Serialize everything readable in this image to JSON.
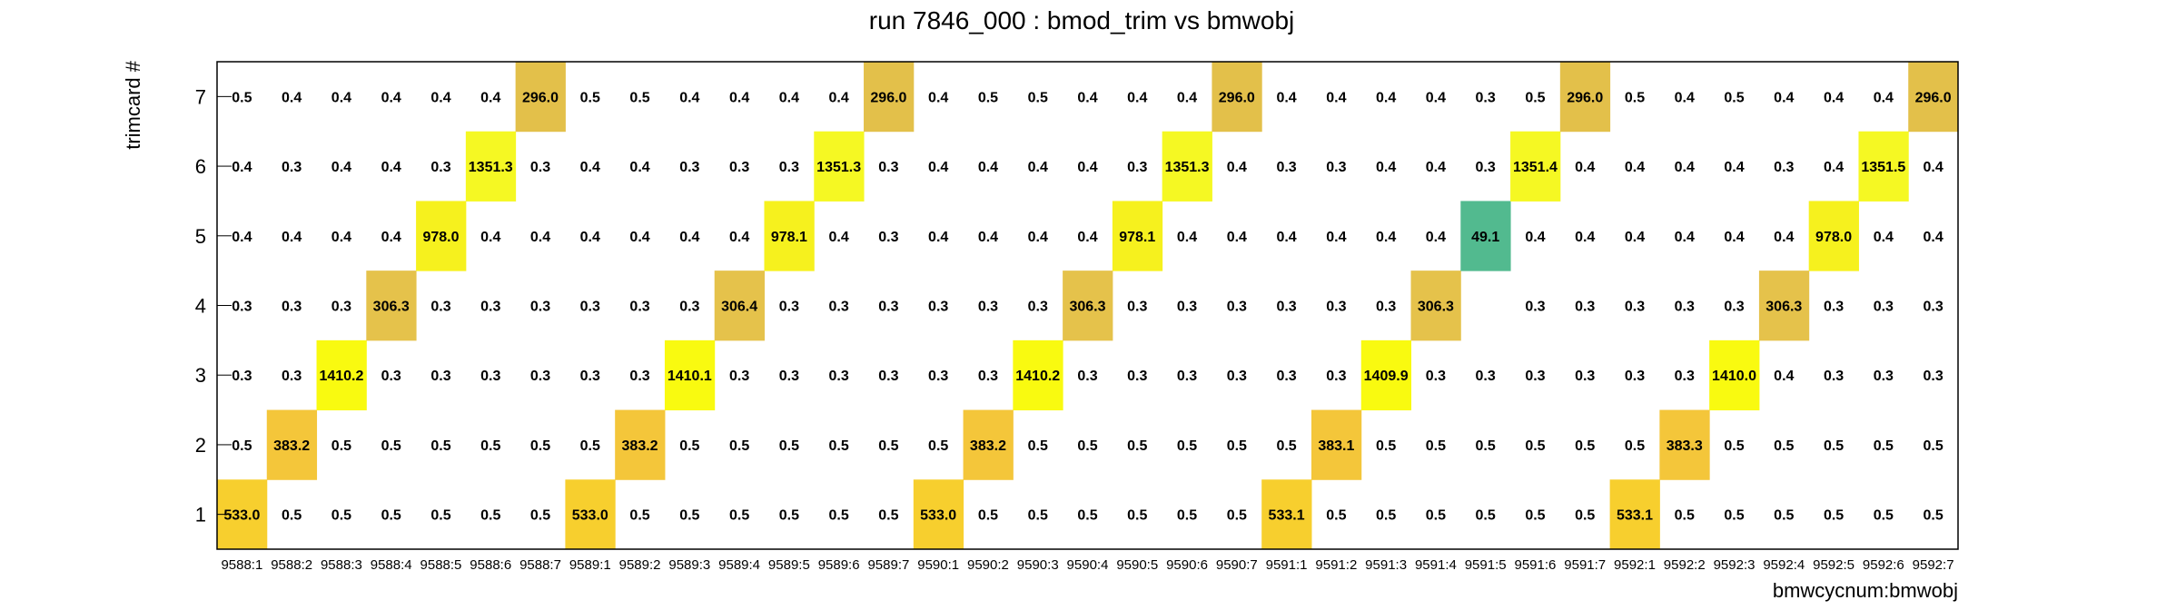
{
  "chart_data": {
    "type": "heatmap",
    "title": "run 7846_000 : bmod_trim vs bmwobj",
    "xlabel": "bmwcycnum:bmwobj",
    "ylabel": "trimcard #",
    "x_categories": [
      "9588:1",
      "9588:2",
      "9588:3",
      "9588:4",
      "9588:5",
      "9588:6",
      "9588:7",
      "9589:1",
      "9589:2",
      "9589:3",
      "9589:4",
      "9589:5",
      "9589:6",
      "9589:7",
      "9590:1",
      "9590:2",
      "9590:3",
      "9590:4",
      "9590:5",
      "9590:6",
      "9590:7",
      "9591:1",
      "9591:2",
      "9591:3",
      "9591:4",
      "9591:5",
      "9591:6",
      "9591:7",
      "9592:1",
      "9592:2",
      "9592:3",
      "9592:4",
      "9592:5",
      "9592:6",
      "9592:7"
    ],
    "y_categories": [
      "1",
      "2",
      "3",
      "4",
      "5",
      "6",
      "7"
    ],
    "rows": [
      [
        "533.0",
        "0.5",
        "0.5",
        "0.5",
        "0.5",
        "0.5",
        "0.5",
        "533.0",
        "0.5",
        "0.5",
        "0.5",
        "0.5",
        "0.5",
        "0.5",
        "533.0",
        "0.5",
        "0.5",
        "0.5",
        "0.5",
        "0.5",
        "0.5",
        "533.1",
        "0.5",
        "0.5",
        "0.5",
        "0.5",
        "0.5",
        "0.5",
        "533.1",
        "0.5",
        "0.5",
        "0.5",
        "0.5",
        "0.5",
        "0.5"
      ],
      [
        "0.5",
        "383.2",
        "0.5",
        "0.5",
        "0.5",
        "0.5",
        "0.5",
        "0.5",
        "383.2",
        "0.5",
        "0.5",
        "0.5",
        "0.5",
        "0.5",
        "0.5",
        "383.2",
        "0.5",
        "0.5",
        "0.5",
        "0.5",
        "0.5",
        "0.5",
        "383.1",
        "0.5",
        "0.5",
        "0.5",
        "0.5",
        "0.5",
        "0.5",
        "383.3",
        "0.5",
        "0.5",
        "0.5",
        "0.5",
        "0.5"
      ],
      [
        "0.3",
        "0.3",
        "1410.2",
        "0.3",
        "0.3",
        "0.3",
        "0.3",
        "0.3",
        "0.3",
        "1410.1",
        "0.3",
        "0.3",
        "0.3",
        "0.3",
        "0.3",
        "0.3",
        "1410.2",
        "0.3",
        "0.3",
        "0.3",
        "0.3",
        "0.3",
        "0.3",
        "1409.9",
        "0.3",
        "0.3",
        "0.3",
        "0.3",
        "0.3",
        "0.3",
        "1410.0",
        "0.4",
        "0.3",
        "0.3",
        "0.3"
      ],
      [
        "0.3",
        "0.3",
        "0.3",
        "306.3",
        "0.3",
        "0.3",
        "0.3",
        "0.3",
        "0.3",
        "0.3",
        "306.4",
        "0.3",
        "0.3",
        "0.3",
        "0.3",
        "0.3",
        "0.3",
        "306.3",
        "0.3",
        "0.3",
        "0.3",
        "0.3",
        "0.3",
        "0.3",
        "306.3",
        "",
        "0.3",
        "0.3",
        "0.3",
        "0.3",
        "0.3",
        "306.3",
        "0.3",
        "0.3",
        "0.3"
      ],
      [
        "0.4",
        "0.4",
        "0.4",
        "0.4",
        "978.0",
        "0.4",
        "0.4",
        "0.4",
        "0.4",
        "0.4",
        "0.4",
        "978.1",
        "0.4",
        "0.3",
        "0.4",
        "0.4",
        "0.4",
        "0.4",
        "978.1",
        "0.4",
        "0.4",
        "0.4",
        "0.4",
        "0.4",
        "0.4",
        "49.1",
        "0.4",
        "0.4",
        "0.4",
        "0.4",
        "0.4",
        "0.4",
        "978.0",
        "0.4",
        "0.4"
      ],
      [
        "0.4",
        "0.3",
        "0.4",
        "0.4",
        "0.3",
        "1351.3",
        "0.3",
        "0.4",
        "0.4",
        "0.3",
        "0.3",
        "0.3",
        "1351.3",
        "0.3",
        "0.4",
        "0.4",
        "0.4",
        "0.4",
        "0.3",
        "1351.3",
        "0.4",
        "0.3",
        "0.3",
        "0.4",
        "0.4",
        "0.3",
        "1351.4",
        "0.4",
        "0.4",
        "0.4",
        "0.4",
        "0.3",
        "0.4",
        "1351.5",
        "0.4"
      ],
      [
        "0.5",
        "0.4",
        "0.4",
        "0.4",
        "0.4",
        "0.4",
        "296.0",
        "0.5",
        "0.5",
        "0.4",
        "0.4",
        "0.4",
        "0.4",
        "296.0",
        "0.4",
        "0.5",
        "0.5",
        "0.4",
        "0.4",
        "0.4",
        "296.0",
        "0.4",
        "0.4",
        "0.4",
        "0.4",
        "0.3",
        "0.5",
        "296.0",
        "0.5",
        "0.4",
        "0.5",
        "0.4",
        "0.4",
        "0.4",
        "296.0"
      ]
    ],
    "colors": {
      "296.0": "#e3c04a",
      "306.3": "#e5c24b",
      "306.4": "#e5c24b",
      "383.1": "#f4c63a",
      "383.2": "#f4c63a",
      "383.3": "#f4c63a",
      "533.0": "#f7cf2e",
      "533.1": "#f7cf2e",
      "978.0": "#f6f11e",
      "978.1": "#f6f11e",
      "1351.3": "#f5f823",
      "1351.4": "#f5f823",
      "1351.5": "#f5f823",
      "1409.9": "#f9fa10",
      "1410.0": "#f9fa10",
      "1410.1": "#f9fa10",
      "1410.2": "#f9fa10",
      "49.1": "#52ba8f"
    },
    "grid": false,
    "legend": "none"
  }
}
